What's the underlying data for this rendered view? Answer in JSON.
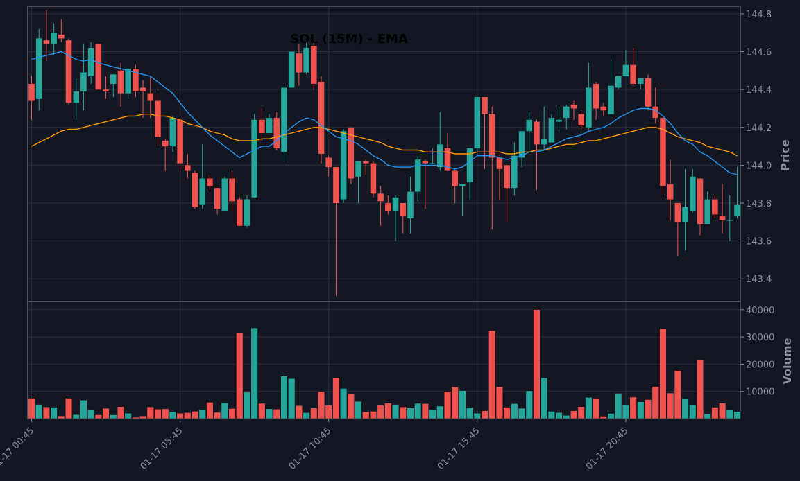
{
  "chart_data": {
    "type": "candlestick",
    "title": "SOL (15M) - EMA",
    "ylabel_price": "Price",
    "ylabel_volume": "Volume",
    "ylim_price": [
      143.28,
      144.84
    ],
    "ylim_volume": [
      0,
      43000
    ],
    "price_ticks": [
      "143.4",
      "143.6",
      "143.8",
      "144.0",
      "144.2",
      "144.4",
      "144.6",
      "144.8"
    ],
    "volume_ticks": [
      "10000",
      "20000",
      "30000",
      "40000"
    ],
    "x_tick_labels": [
      {
        "index": 0,
        "label": "01-17 00:45"
      },
      {
        "index": 20,
        "label": "01-17 05:45"
      },
      {
        "index": 40,
        "label": "01-17 10:45"
      },
      {
        "index": 60,
        "label": "01-17 15:45"
      },
      {
        "index": 80,
        "label": "01-17 20:45"
      }
    ],
    "colors": {
      "up": "#26a69a",
      "down": "#ef5350",
      "ema_fast": "#2196f3",
      "ema_slow": "#ff9800",
      "background": "#131722",
      "grid": "#2a2e39",
      "axis": "#5d606b"
    },
    "series": [
      {
        "name": "OHLC",
        "points": [
          [
            144.43,
            144.47,
            144.24,
            144.34
          ],
          [
            144.35,
            144.72,
            144.29,
            144.67
          ],
          [
            144.66,
            144.82,
            144.55,
            144.64
          ],
          [
            144.64,
            144.75,
            144.58,
            144.7
          ],
          [
            144.69,
            144.77,
            144.65,
            144.67
          ],
          [
            144.66,
            144.67,
            144.32,
            144.33
          ],
          [
            144.33,
            144.46,
            144.24,
            144.39
          ],
          [
            144.39,
            144.64,
            144.29,
            144.49
          ],
          [
            144.47,
            144.65,
            144.43,
            144.62
          ],
          [
            144.64,
            144.64,
            144.4,
            144.4
          ],
          [
            144.4,
            144.47,
            144.35,
            144.39
          ],
          [
            144.43,
            144.48,
            144.36,
            144.48
          ],
          [
            144.5,
            144.54,
            144.31,
            144.38
          ],
          [
            144.38,
            144.51,
            144.35,
            144.51
          ],
          [
            144.51,
            144.53,
            144.36,
            144.39
          ],
          [
            144.41,
            144.45,
            144.25,
            144.39
          ],
          [
            144.38,
            144.47,
            144.25,
            144.34
          ],
          [
            144.34,
            144.38,
            144.1,
            144.15
          ],
          [
            144.13,
            144.14,
            143.97,
            144.1
          ],
          [
            144.1,
            144.26,
            144.07,
            144.25
          ],
          [
            144.24,
            144.25,
            143.98,
            144.01
          ],
          [
            144.0,
            144.06,
            143.93,
            143.97
          ],
          [
            143.96,
            143.97,
            143.77,
            143.78
          ],
          [
            143.79,
            144.11,
            143.77,
            143.93
          ],
          [
            143.93,
            143.95,
            143.87,
            143.89
          ],
          [
            143.88,
            143.88,
            143.74,
            143.77
          ],
          [
            143.76,
            143.94,
            143.76,
            143.93
          ],
          [
            143.93,
            143.97,
            143.76,
            143.81
          ],
          [
            143.82,
            143.83,
            143.72,
            143.68
          ],
          [
            143.68,
            143.84,
            143.67,
            143.82
          ],
          [
            143.83,
            144.27,
            143.83,
            144.24
          ],
          [
            144.24,
            144.3,
            144.13,
            144.17
          ],
          [
            144.17,
            144.27,
            144.17,
            144.25
          ],
          [
            144.25,
            144.28,
            144.08,
            144.09
          ],
          [
            144.07,
            144.42,
            144.02,
            144.41
          ],
          [
            144.41,
            144.6,
            144.41,
            144.6
          ],
          [
            144.59,
            144.64,
            144.42,
            144.49
          ],
          [
            144.49,
            144.65,
            144.48,
            144.62
          ],
          [
            144.63,
            144.65,
            144.4,
            144.43
          ],
          [
            144.44,
            144.47,
            144.01,
            144.06
          ],
          [
            144.04,
            144.05,
            143.94,
            143.99
          ],
          [
            143.99,
            143.99,
            143.31,
            143.8
          ],
          [
            143.82,
            144.19,
            143.8,
            144.18
          ],
          [
            144.2,
            144.2,
            143.9,
            143.93
          ],
          [
            143.94,
            144.02,
            143.8,
            144.02
          ],
          [
            144.02,
            144.03,
            143.95,
            144.01
          ],
          [
            144.01,
            144.02,
            143.83,
            143.85
          ],
          [
            143.85,
            143.89,
            143.68,
            143.81
          ],
          [
            143.8,
            143.84,
            143.74,
            143.76
          ],
          [
            143.76,
            143.84,
            143.6,
            143.83
          ],
          [
            143.8,
            143.8,
            143.64,
            143.73
          ],
          [
            143.72,
            143.94,
            143.64,
            143.86
          ],
          [
            143.86,
            144.05,
            143.81,
            144.03
          ],
          [
            144.02,
            144.03,
            143.77,
            144.01
          ],
          [
            144.01,
            144.09,
            144.01,
            144.01
          ],
          [
            143.99,
            144.28,
            143.97,
            144.11
          ],
          [
            144.09,
            144.17,
            143.99,
            143.97
          ],
          [
            143.97,
            143.97,
            143.8,
            143.89
          ],
          [
            143.89,
            143.9,
            143.73,
            143.9
          ],
          [
            143.91,
            144.09,
            143.82,
            144.09
          ],
          [
            144.09,
            144.36,
            144.05,
            144.36
          ],
          [
            144.36,
            144.36,
            143.98,
            144.27
          ],
          [
            144.27,
            144.31,
            143.66,
            144.04
          ],
          [
            144.04,
            144.04,
            143.82,
            143.98
          ],
          [
            144.0,
            144.0,
            143.7,
            143.88
          ],
          [
            143.88,
            144.12,
            143.84,
            144.05
          ],
          [
            144.04,
            144.18,
            143.99,
            144.18
          ],
          [
            144.18,
            144.28,
            144.08,
            144.24
          ],
          [
            144.23,
            144.24,
            143.87,
            144.11
          ],
          [
            144.11,
            144.31,
            144.08,
            144.14
          ],
          [
            144.12,
            144.27,
            144.12,
            144.25
          ],
          [
            144.23,
            144.31,
            144.18,
            144.24
          ],
          [
            144.25,
            144.32,
            144.19,
            144.31
          ],
          [
            144.32,
            144.34,
            144.24,
            144.3
          ],
          [
            144.27,
            144.29,
            144.19,
            144.21
          ],
          [
            144.2,
            144.54,
            144.19,
            144.41
          ],
          [
            144.43,
            144.44,
            144.24,
            144.3
          ],
          [
            144.31,
            144.33,
            144.26,
            144.29
          ],
          [
            144.27,
            144.56,
            144.27,
            144.42
          ],
          [
            144.41,
            144.47,
            144.4,
            144.47
          ],
          [
            144.47,
            144.61,
            144.47,
            144.53
          ],
          [
            144.53,
            144.62,
            144.42,
            144.43
          ],
          [
            144.43,
            144.46,
            144.4,
            144.46
          ],
          [
            144.46,
            144.48,
            144.29,
            144.31
          ],
          [
            144.31,
            144.41,
            144.22,
            144.25
          ],
          [
            144.25,
            144.26,
            143.84,
            143.89
          ],
          [
            143.9,
            144.03,
            143.71,
            143.82
          ],
          [
            143.8,
            143.8,
            143.52,
            143.7
          ],
          [
            143.7,
            143.98,
            143.55,
            143.78
          ],
          [
            143.76,
            143.98,
            143.75,
            143.94
          ],
          [
            143.93,
            143.93,
            143.63,
            143.69
          ],
          [
            143.69,
            143.86,
            143.69,
            143.82
          ],
          [
            143.82,
            143.84,
            143.72,
            143.74
          ],
          [
            143.73,
            143.9,
            143.64,
            143.71
          ],
          [
            143.71,
            143.84,
            143.6,
            143.71
          ],
          [
            143.73,
            143.99,
            143.72,
            143.79
          ]
        ]
      },
      {
        "name": "Volume",
        "values": [
          7500,
          5200,
          4300,
          4200,
          1000,
          7500,
          1500,
          6800,
          3200,
          1400,
          3800,
          1400,
          4400,
          2000,
          500,
          1000,
          4300,
          3500,
          3600,
          2500,
          2000,
          2200,
          2700,
          3300,
          6000,
          2300,
          5900,
          3700,
          31600,
          9700,
          33300,
          5600,
          3600,
          3500,
          15600,
          14700,
          4800,
          2200,
          3900,
          9900,
          4900,
          15000,
          11100,
          9200,
          6300,
          2500,
          2700,
          4900,
          5700,
          5200,
          4300,
          3900,
          5600,
          5500,
          3300,
          4600,
          10000,
          11600,
          10300,
          4100,
          2000,
          2900,
          32300,
          11700,
          4200,
          5500,
          3800,
          10200,
          40000,
          15000,
          2700,
          2200,
          1200,
          2900,
          4400,
          7800,
          7400,
          900,
          1900,
          9300,
          5100,
          7900,
          6200,
          7000,
          11800,
          33000,
          9400,
          17600,
          7300,
          5100,
          21500,
          1700,
          4200,
          5700,
          3200,
          2600
        ]
      },
      {
        "name": "EMA fast",
        "values": [
          144.56,
          144.57,
          144.58,
          144.59,
          144.6,
          144.58,
          144.56,
          144.55,
          144.56,
          144.54,
          144.53,
          144.52,
          144.51,
          144.5,
          144.49,
          144.48,
          144.47,
          144.44,
          144.41,
          144.38,
          144.33,
          144.28,
          144.24,
          144.2,
          144.16,
          144.13,
          144.1,
          144.07,
          144.04,
          144.06,
          144.08,
          144.1,
          144.1,
          144.13,
          144.17,
          144.2,
          144.23,
          144.25,
          144.24,
          144.21,
          144.18,
          144.15,
          144.14,
          144.13,
          144.11,
          144.08,
          144.05,
          144.03,
          144.0,
          143.99,
          143.99,
          143.99,
          144.0,
          144.0,
          144.0,
          144.0,
          143.99,
          143.98,
          143.99,
          144.02,
          144.05,
          144.05,
          144.05,
          144.04,
          144.03,
          144.04,
          144.05,
          144.07,
          144.07,
          144.08,
          144.1,
          144.12,
          144.14,
          144.15,
          144.16,
          144.18,
          144.19,
          144.2,
          144.22,
          144.25,
          144.27,
          144.29,
          144.3,
          144.3,
          144.29,
          144.26,
          144.22,
          144.17,
          144.13,
          144.11,
          144.07,
          144.05,
          144.02,
          143.99,
          143.96,
          143.95
        ]
      },
      {
        "name": "EMA slow",
        "values": [
          144.1,
          144.12,
          144.14,
          144.16,
          144.18,
          144.19,
          144.19,
          144.2,
          144.21,
          144.22,
          144.23,
          144.24,
          144.25,
          144.26,
          144.26,
          144.27,
          144.27,
          144.26,
          144.26,
          144.25,
          144.24,
          144.22,
          144.21,
          144.2,
          144.18,
          144.17,
          144.16,
          144.14,
          144.13,
          144.13,
          144.13,
          144.14,
          144.14,
          144.15,
          144.16,
          144.17,
          144.18,
          144.19,
          144.2,
          144.2,
          144.19,
          144.18,
          144.17,
          144.16,
          144.15,
          144.14,
          144.13,
          144.12,
          144.1,
          144.09,
          144.08,
          144.08,
          144.08,
          144.07,
          144.07,
          144.07,
          144.07,
          144.06,
          144.06,
          144.06,
          144.07,
          144.07,
          144.07,
          144.07,
          144.06,
          144.06,
          144.07,
          144.07,
          144.08,
          144.08,
          144.09,
          144.1,
          144.11,
          144.11,
          144.12,
          144.13,
          144.13,
          144.14,
          144.15,
          144.16,
          144.17,
          144.18,
          144.19,
          144.2,
          144.2,
          144.19,
          144.17,
          144.15,
          144.14,
          144.13,
          144.12,
          144.1,
          144.09,
          144.08,
          144.07,
          144.05
        ]
      }
    ]
  }
}
